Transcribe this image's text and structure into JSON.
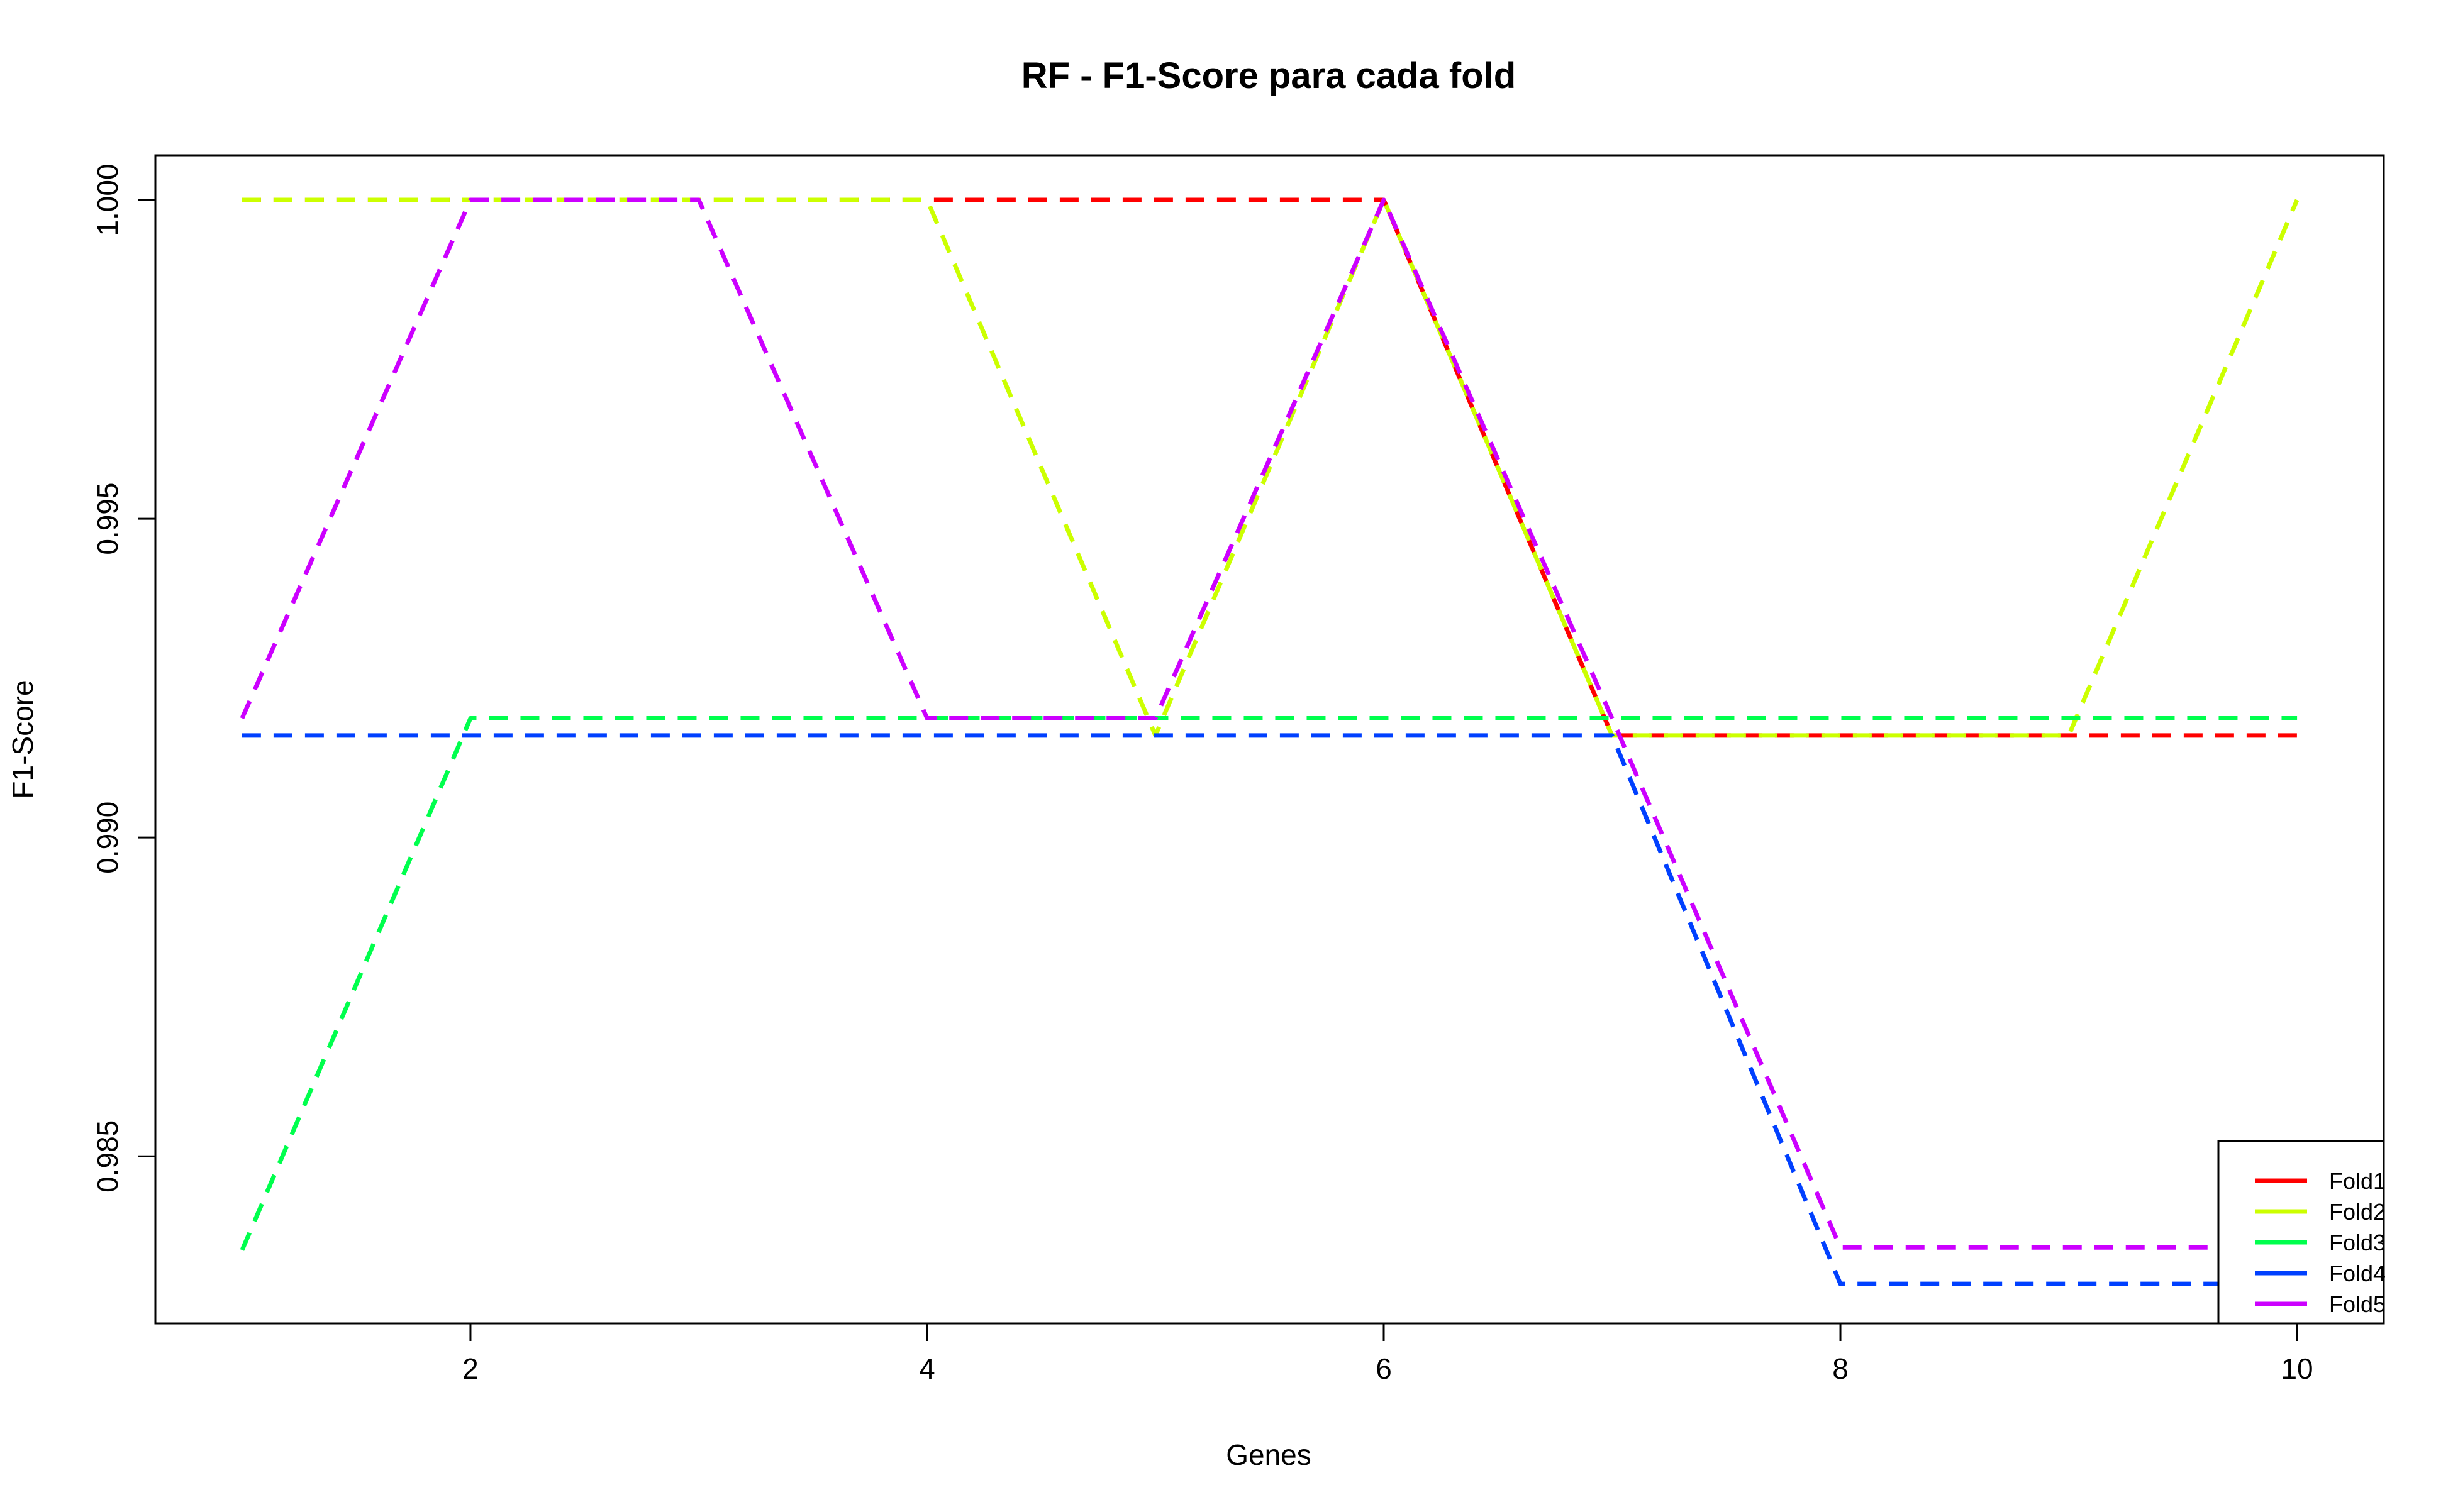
{
  "chart_data": {
    "type": "line",
    "title": "RF - F1-Score para cada fold",
    "xlabel": "Genes",
    "ylabel": "F1-Score",
    "xlim": [
      0.62,
      10.38
    ],
    "ylim": [
      0.98238,
      1.0007
    ],
    "x_ticks": [
      2,
      4,
      6,
      8,
      10
    ],
    "y_ticks": [
      0.985,
      0.99,
      0.995,
      1.0
    ],
    "x_tick_labels": [
      "2",
      "4",
      "6",
      "8",
      "10"
    ],
    "y_tick_labels": [
      "0.985",
      "0.990",
      "0.995",
      "1.000"
    ],
    "grid": false,
    "line_style": "dashed",
    "legend_position": "bottom-right",
    "x": [
      1,
      2,
      3,
      4,
      5,
      6,
      7,
      8,
      9,
      10
    ],
    "series": [
      {
        "name": "Fold1",
        "color": "#ff0000",
        "values": [
          1.0,
          1.0,
          1.0,
          1.0,
          1.0,
          1.0,
          0.9916,
          0.9916,
          0.9916,
          0.9916
        ]
      },
      {
        "name": "Fold2",
        "color": "#ccff00",
        "values": [
          1.0,
          1.0,
          1.0,
          1.0,
          0.9916,
          1.0,
          0.9916,
          0.9916,
          0.9916,
          1.0
        ]
      },
      {
        "name": "Fold3",
        "color": "#00ff4d",
        "values": [
          0.98353,
          0.99187,
          0.99187,
          0.99187,
          0.99187,
          0.99187,
          0.99187,
          0.99187,
          0.99187,
          0.99187
        ]
      },
      {
        "name": "Fold4",
        "color": "#0040ff",
        "values": [
          0.9916,
          0.9916,
          0.9916,
          0.9916,
          0.9916,
          0.9916,
          0.9916,
          0.983,
          0.983,
          0.983
        ]
      },
      {
        "name": "Fold5",
        "color": "#cc00ff",
        "values": [
          0.99187,
          1.0,
          1.0,
          0.99187,
          0.99187,
          1.0,
          0.99187,
          0.98357,
          0.98357,
          0.98357
        ]
      }
    ]
  }
}
